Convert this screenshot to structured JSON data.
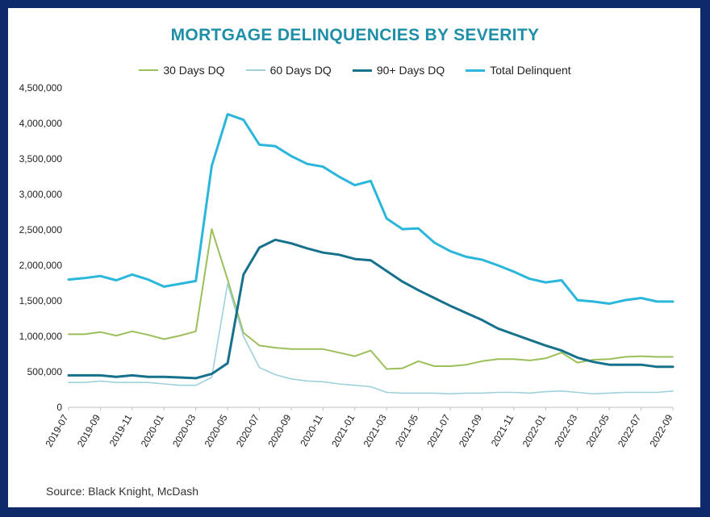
{
  "colors": {
    "background": "#0e2a6b",
    "title": "#1f8fa8",
    "dq30": "#9bbf5a",
    "dq60": "#9fd0db",
    "dq90": "#16718c",
    "total": "#2bb6dc"
  },
  "source": "Source: Black Knight, McDash",
  "chart_data": {
    "type": "line",
    "title": "MORTGAGE DELINQUENCIES BY SEVERITY",
    "xlabel": "",
    "ylabel": "",
    "ylim": [
      0,
      4500000
    ],
    "yticks": [
      "0",
      "500,000",
      "1,000,000",
      "1,500,000",
      "2,000,000",
      "2,500,000",
      "3,000,000",
      "3,500,000",
      "4,000,000",
      "4,500,000"
    ],
    "xtick_labels": [
      "2019-07",
      "2019-09",
      "2019-11",
      "2020-01",
      "2020-03",
      "2020-05",
      "2020-07",
      "2020-09",
      "2020-11",
      "2021-01",
      "2021-03",
      "2021-05",
      "2021-07",
      "2021-09",
      "2021-11",
      "2022-01",
      "2022-03",
      "2022-05",
      "2022-07",
      "2022-09"
    ],
    "x": [
      "2019-07",
      "2019-08",
      "2019-09",
      "2019-10",
      "2019-11",
      "2019-12",
      "2020-01",
      "2020-02",
      "2020-03",
      "2020-04",
      "2020-05",
      "2020-06",
      "2020-07",
      "2020-08",
      "2020-09",
      "2020-10",
      "2020-11",
      "2020-12",
      "2021-01",
      "2021-02",
      "2021-03",
      "2021-04",
      "2021-05",
      "2021-06",
      "2021-07",
      "2021-08",
      "2021-09",
      "2021-10",
      "2021-11",
      "2021-12",
      "2022-01",
      "2022-02",
      "2022-03",
      "2022-04",
      "2022-05",
      "2022-06",
      "2022-07",
      "2022-08",
      "2022-09"
    ],
    "grid": false,
    "legend_position": "top",
    "series": [
      {
        "name": "30 Days DQ",
        "color": "#9bbf5a",
        "width": 2,
        "values": [
          1030000,
          1030000,
          1060000,
          1010000,
          1070000,
          1020000,
          960000,
          1010000,
          1070000,
          2510000,
          1800000,
          1050000,
          870000,
          840000,
          820000,
          820000,
          820000,
          770000,
          720000,
          800000,
          540000,
          550000,
          650000,
          580000,
          580000,
          600000,
          650000,
          680000,
          680000,
          660000,
          690000,
          770000,
          630000,
          670000,
          680000,
          710000,
          720000,
          710000,
          710000
        ]
      },
      {
        "name": "60 Days DQ",
        "color": "#9fd0db",
        "width": 1.6,
        "values": [
          350000,
          350000,
          370000,
          350000,
          350000,
          350000,
          330000,
          310000,
          310000,
          420000,
          1740000,
          1000000,
          560000,
          460000,
          400000,
          370000,
          360000,
          330000,
          310000,
          290000,
          210000,
          200000,
          200000,
          200000,
          190000,
          200000,
          200000,
          210000,
          210000,
          200000,
          220000,
          230000,
          210000,
          190000,
          200000,
          210000,
          210000,
          210000,
          230000
        ]
      },
      {
        "name": "90+ Days DQ",
        "color": "#16718c",
        "width": 3,
        "values": [
          450000,
          450000,
          450000,
          430000,
          450000,
          430000,
          430000,
          420000,
          410000,
          470000,
          620000,
          1870000,
          2250000,
          2360000,
          2310000,
          2240000,
          2180000,
          2150000,
          2090000,
          2070000,
          1920000,
          1770000,
          1650000,
          1540000,
          1430000,
          1330000,
          1230000,
          1110000,
          1030000,
          950000,
          870000,
          800000,
          700000,
          640000,
          600000,
          600000,
          600000,
          570000,
          570000
        ]
      },
      {
        "name": "Total Delinquent",
        "color": "#2bb6dc",
        "width": 3,
        "values": [
          1800000,
          1820000,
          1850000,
          1790000,
          1870000,
          1800000,
          1700000,
          1740000,
          1780000,
          3400000,
          4130000,
          4050000,
          3700000,
          3680000,
          3540000,
          3430000,
          3390000,
          3250000,
          3130000,
          3190000,
          2660000,
          2510000,
          2520000,
          2320000,
          2200000,
          2120000,
          2080000,
          2000000,
          1910000,
          1810000,
          1760000,
          1790000,
          1510000,
          1490000,
          1460000,
          1510000,
          1540000,
          1490000,
          1490000
        ]
      }
    ]
  }
}
